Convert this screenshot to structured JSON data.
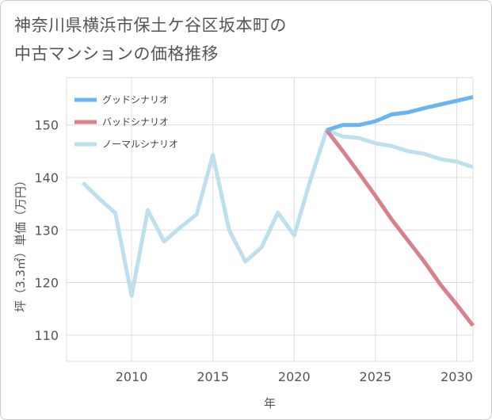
{
  "title_line1": "神奈川県横浜市保土ケ谷区坂本町の",
  "title_line2": "中古マンションの価格推移",
  "chart_data": {
    "type": "line",
    "title": "神奈川県横浜市保土ケ谷区坂本町の中古マンションの価格推移",
    "xlabel": "年",
    "ylabel": "坪（3.3㎡）単価（万円）",
    "xlim": [
      2006,
      2031
    ],
    "ylim": [
      105,
      159
    ],
    "xticks": [
      2010,
      2015,
      2020,
      2025,
      2030
    ],
    "yticks": [
      110,
      120,
      130,
      140,
      150
    ],
    "grid": true,
    "legend_position": "top-left",
    "series": [
      {
        "name": "グッドシナリオ",
        "color": "#6ab4f0",
        "x": [
          2022,
          2023,
          2024,
          2025,
          2026,
          2027,
          2028,
          2029,
          2030,
          2031
        ],
        "y": [
          149.0,
          150.0,
          150.0,
          150.7,
          152.0,
          152.4,
          153.2,
          153.9,
          154.6,
          155.3
        ]
      },
      {
        "name": "バッドシナリオ",
        "color": "#d9818a",
        "x": [
          2022,
          2023,
          2024,
          2025,
          2026,
          2027,
          2028,
          2029,
          2030,
          2031
        ],
        "y": [
          149.0,
          145.0,
          140.8,
          136.5,
          132.0,
          128.0,
          124.0,
          119.6,
          115.8,
          111.8
        ]
      },
      {
        "name": "ノーマルシナリオ",
        "color": "#bee0ee",
        "x": [
          2007,
          2008,
          2009,
          2010,
          2011,
          2012,
          2013,
          2014,
          2015,
          2016,
          2017,
          2018,
          2019,
          2020,
          2021,
          2022,
          2023,
          2024,
          2025,
          2026,
          2027,
          2028,
          2029,
          2030,
          2031
        ],
        "y": [
          139.0,
          136.0,
          133.2,
          117.5,
          133.8,
          127.8,
          130.5,
          133.0,
          144.3,
          130.0,
          124.0,
          126.7,
          133.3,
          129.0,
          139.5,
          149.0,
          147.8,
          147.5,
          146.5,
          146.0,
          145.0,
          144.5,
          143.5,
          143.0,
          142.0
        ]
      }
    ]
  }
}
